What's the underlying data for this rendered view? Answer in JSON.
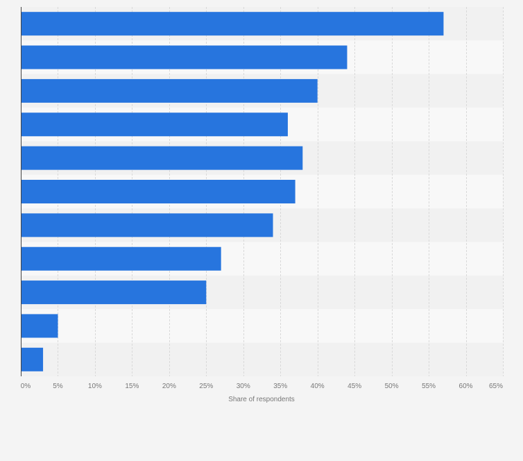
{
  "chart_data": {
    "type": "bar",
    "orientation": "horizontal",
    "title": "",
    "xlabel": "Share of respondents",
    "ylabel": "",
    "categories": [
      "",
      "",
      "",
      "",
      "",
      "",
      "",
      "",
      "",
      "",
      ""
    ],
    "values": [
      57,
      44,
      40,
      36,
      38,
      37,
      34,
      27,
      25,
      5,
      3
    ],
    "xlim": [
      0,
      65
    ],
    "xticks": [
      0,
      5,
      10,
      15,
      20,
      25,
      30,
      35,
      40,
      45,
      50,
      55,
      60,
      65
    ],
    "xtick_labels": [
      "0%",
      "5%",
      "10%",
      "15%",
      "20%",
      "25%",
      "30%",
      "35%",
      "40%",
      "45%",
      "50%",
      "55%",
      "60%",
      "65%"
    ],
    "grid": true,
    "colors": {
      "bar": "#2775de",
      "band_dark": "#f1f1f1",
      "band_light": "#f8f8f8",
      "grid": "#d9d9d9",
      "axis": "#444444",
      "tick_text": "#777777",
      "background": "#f4f4f4"
    }
  }
}
